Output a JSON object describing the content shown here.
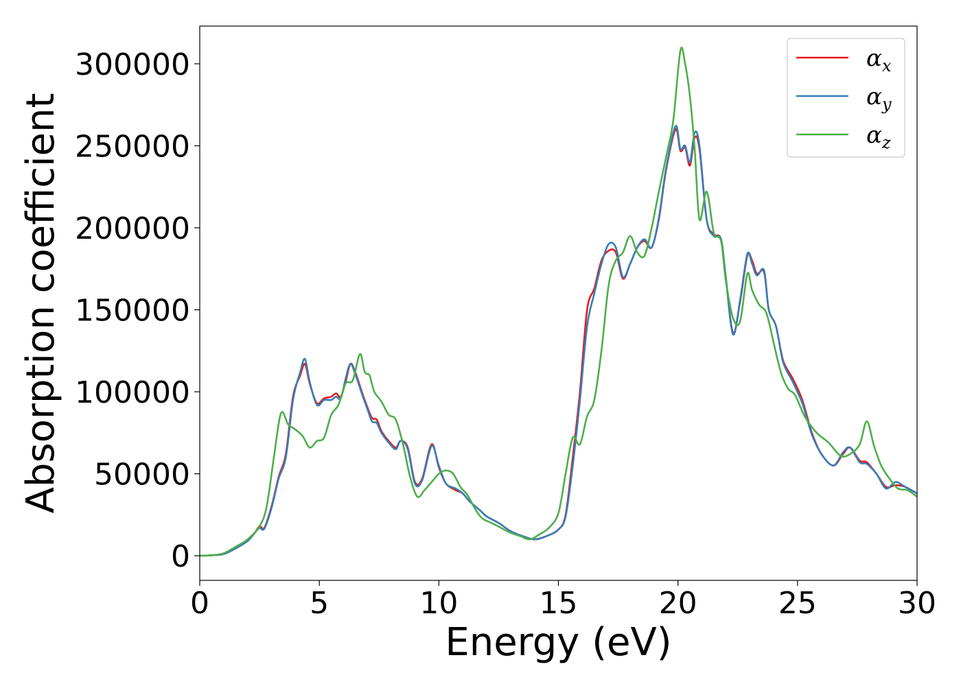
{
  "chart_data": {
    "type": "line",
    "xlabel": "Energy (eV)",
    "ylabel": "Absorption coefficient",
    "xlim": [
      0,
      30
    ],
    "ylim": [
      -15000,
      323000
    ],
    "xticks": [
      0,
      5,
      10,
      15,
      20,
      25,
      30
    ],
    "yticks": [
      0,
      50000,
      100000,
      150000,
      200000,
      250000,
      300000
    ],
    "grid": false,
    "legend_position": "top-right",
    "series": [
      {
        "name": "α",
        "subscript": "x",
        "color": "#e41a1c",
        "x": [
          0,
          0.5,
          1,
          1.5,
          2,
          2.3,
          2.5,
          2.7,
          3,
          3.3,
          3.6,
          3.9,
          4.2,
          4.4,
          4.6,
          4.9,
          5.2,
          5.5,
          5.7,
          5.9,
          6.1,
          6.3,
          6.5,
          6.8,
          7,
          7.2,
          7.4,
          7.6,
          7.9,
          8.2,
          8.4,
          8.7,
          9,
          9.3,
          9.7,
          10,
          10.3,
          10.7,
          11,
          11.3,
          11.7,
          12,
          12.5,
          13,
          13.5,
          14,
          14.5,
          15,
          15.3,
          15.6,
          15.9,
          16.2,
          16.5,
          16.8,
          17.1,
          17.4,
          17.7,
          18,
          18.3,
          18.6,
          18.9,
          19.2,
          19.5,
          19.9,
          20.1,
          20.3,
          20.5,
          20.7,
          20.9,
          21.2,
          21.5,
          21.8,
          22,
          22.3,
          22.6,
          22.9,
          23.1,
          23.3,
          23.6,
          23.8,
          24.1,
          24.4,
          24.8,
          25.2,
          25.6,
          26,
          26.5,
          26.9,
          27.2,
          27.6,
          27.9,
          28.3,
          28.7,
          29.1,
          29.5,
          30
        ],
        "y": [
          0,
          300,
          1000,
          4500,
          9000,
          14000,
          18000,
          17000,
          30000,
          48000,
          62000,
          97000,
          110000,
          117000,
          105000,
          93000,
          96000,
          97000,
          99000,
          97000,
          106000,
          117000,
          112000,
          99000,
          91000,
          84000,
          83000,
          76000,
          70000,
          66000,
          70000,
          66000,
          45000,
          47000,
          68000,
          54000,
          44000,
          40000,
          38000,
          33000,
          28000,
          24000,
          20000,
          15000,
          12000,
          10000,
          12000,
          16000,
          25000,
          60000,
          100000,
          150000,
          163000,
          180000,
          186000,
          185000,
          169000,
          178000,
          188000,
          192000,
          188000,
          205000,
          235000,
          260000,
          247000,
          249000,
          238000,
          255000,
          248000,
          205000,
          196000,
          193000,
          170000,
          136000,
          155000,
          183000,
          180000,
          172000,
          173000,
          150000,
          140000,
          119000,
          108000,
          95000,
          75000,
          62000,
          55000,
          62000,
          66000,
          58000,
          57000,
          50000,
          42000,
          43000,
          42000,
          38000
        ]
      },
      {
        "name": "α",
        "subscript": "y",
        "color": "#377eb8",
        "x": [
          0,
          0.5,
          1,
          1.5,
          2,
          2.3,
          2.5,
          2.7,
          3,
          3.3,
          3.6,
          3.9,
          4.2,
          4.4,
          4.6,
          4.9,
          5.2,
          5.5,
          5.7,
          5.9,
          6.1,
          6.3,
          6.5,
          6.8,
          7,
          7.2,
          7.4,
          7.6,
          7.9,
          8.2,
          8.4,
          8.7,
          9,
          9.3,
          9.7,
          10,
          10.3,
          10.7,
          11,
          11.3,
          11.7,
          12,
          12.5,
          13,
          13.5,
          14,
          14.5,
          15,
          15.3,
          15.6,
          15.9,
          16.2,
          16.5,
          16.8,
          17.1,
          17.4,
          17.7,
          18,
          18.3,
          18.6,
          18.9,
          19.2,
          19.5,
          19.9,
          20.1,
          20.3,
          20.5,
          20.7,
          20.9,
          21.2,
          21.5,
          21.8,
          22,
          22.3,
          22.6,
          22.9,
          23.1,
          23.3,
          23.6,
          23.8,
          24.1,
          24.4,
          24.8,
          25.2,
          25.6,
          26,
          26.5,
          26.9,
          27.2,
          27.6,
          27.9,
          28.3,
          28.7,
          29.1,
          29.5,
          30
        ],
        "y": [
          0,
          300,
          1000,
          4500,
          9000,
          14000,
          17000,
          16500,
          29000,
          47000,
          60000,
          95000,
          112000,
          120000,
          106000,
          92000,
          95000,
          95000,
          97000,
          96000,
          108000,
          117000,
          111000,
          98000,
          90000,
          82000,
          81000,
          75000,
          69000,
          65000,
          70000,
          65000,
          44000,
          46000,
          67000,
          55000,
          44000,
          41000,
          38000,
          33000,
          28000,
          24000,
          20000,
          15000,
          12000,
          10000,
          12000,
          16000,
          24000,
          55000,
          95000,
          140000,
          160000,
          178000,
          190000,
          188000,
          170000,
          178000,
          188000,
          193000,
          188000,
          206000,
          236000,
          262000,
          248000,
          250000,
          240000,
          258000,
          250000,
          205000,
          195000,
          193000,
          170000,
          135000,
          156000,
          184000,
          178000,
          171000,
          174000,
          150000,
          140000,
          118000,
          106000,
          93000,
          74000,
          62000,
          55000,
          63000,
          66000,
          57000,
          56000,
          50000,
          41000,
          45000,
          42000,
          38000
        ]
      },
      {
        "name": "α",
        "subscript": "z",
        "color": "#4daf4a",
        "x": [
          0,
          0.5,
          1,
          1.5,
          2,
          2.5,
          2.8,
          3.1,
          3.4,
          3.7,
          4,
          4.3,
          4.6,
          4.9,
          5.2,
          5.5,
          5.8,
          6.1,
          6.4,
          6.7,
          6.9,
          7.1,
          7.3,
          7.6,
          7.9,
          8.2,
          8.5,
          8.8,
          9.1,
          9.4,
          9.7,
          10,
          10.3,
          10.6,
          10.9,
          11.2,
          11.5,
          11.8,
          12.2,
          12.6,
          13,
          13.4,
          13.8,
          14.2,
          14.6,
          15,
          15.3,
          15.6,
          15.9,
          16.2,
          16.5,
          16.8,
          17.1,
          17.4,
          17.7,
          18,
          18.3,
          18.6,
          18.9,
          19.2,
          19.5,
          19.8,
          20.1,
          20.3,
          20.5,
          20.7,
          20.9,
          21.2,
          21.5,
          21.8,
          22,
          22.3,
          22.6,
          22.9,
          23.1,
          23.4,
          23.7,
          24,
          24.3,
          24.6,
          24.9,
          25.3,
          25.8,
          26.3,
          26.8,
          27.2,
          27.6,
          27.9,
          28.2,
          28.5,
          28.8,
          29.2,
          29.6,
          30
        ],
        "y": [
          0,
          300,
          1500,
          5500,
          10000,
          18000,
          30000,
          60000,
          87000,
          80000,
          77000,
          73000,
          66000,
          70000,
          72000,
          86000,
          92000,
          105000,
          107000,
          123000,
          112000,
          110000,
          100000,
          94000,
          86000,
          83000,
          68000,
          48000,
          36000,
          40000,
          45000,
          50000,
          52000,
          50000,
          42000,
          37000,
          29000,
          23000,
          20000,
          17000,
          14000,
          12000,
          10000,
          13000,
          17000,
          26000,
          50000,
          72000,
          68000,
          85000,
          95000,
          125000,
          165000,
          180000,
          185000,
          195000,
          185000,
          183000,
          200000,
          222000,
          243000,
          265000,
          308000,
          300000,
          280000,
          248000,
          205000,
          222000,
          197000,
          192000,
          168000,
          145000,
          143000,
          172000,
          162000,
          153000,
          148000,
          130000,
          112000,
          102000,
          98000,
          85000,
          75000,
          69000,
          61000,
          62000,
          68000,
          82000,
          67000,
          55000,
          48000,
          41000,
          40000,
          36000
        ]
      }
    ]
  }
}
